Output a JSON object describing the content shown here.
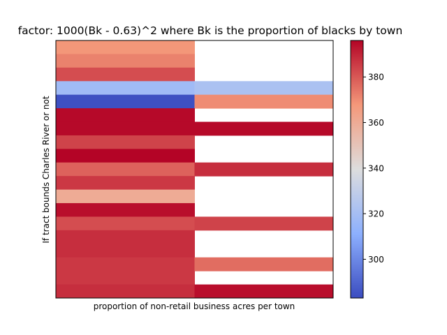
{
  "chart_data": {
    "type": "heatmap",
    "title": "factor: 1000(Bk - 0.63)^2 where Bk is the proportion of blacks by town",
    "xlabel": "proportion of non-retail business acres per town",
    "ylabel": "If tract bounds Charles River or not",
    "colormap": "coolwarm",
    "clim": [
      283,
      396
    ],
    "colorbar_ticks": [
      300,
      320,
      340,
      360,
      380
    ],
    "grid": false,
    "columns": 2,
    "rows": 19,
    "values": [
      [
        368,
        null
      ],
      [
        372,
        null
      ],
      [
        382,
        null
      ],
      [
        318,
        322
      ],
      [
        284,
        370
      ],
      [
        395,
        null
      ],
      [
        395,
        395
      ],
      [
        384,
        null
      ],
      [
        396,
        null
      ],
      [
        378,
        388
      ],
      [
        386,
        null
      ],
      [
        360,
        null
      ],
      [
        394,
        null
      ],
      [
        382,
        384
      ],
      [
        388,
        null
      ],
      [
        388,
        null
      ],
      [
        386,
        376
      ],
      [
        386,
        null
      ],
      [
        388,
        394
      ]
    ]
  }
}
